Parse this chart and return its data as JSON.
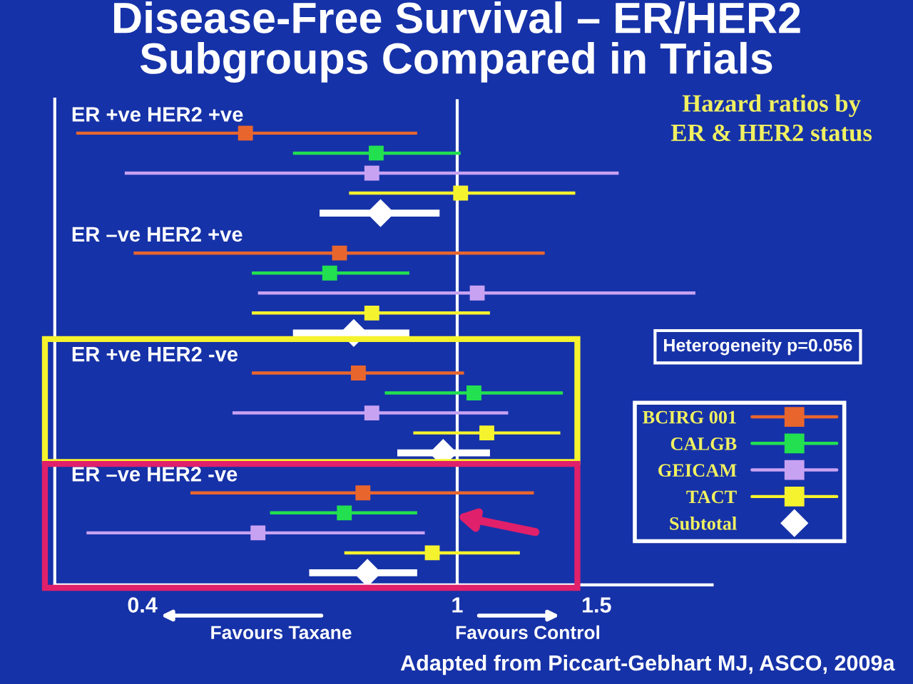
{
  "chart_data": {
    "type": "scatter",
    "orientation": "horizontal",
    "title": "Disease-Free Survival – ER/HER2\nSubgroups Compared in Trials",
    "subtitle": "Hazard ratios by\nER & HER2 status",
    "categories": [
      "ER +ve HER2 +ve",
      null,
      null,
      null,
      null,
      null,
      "ER –ve HER2 +ve",
      null,
      null,
      null,
      null,
      null,
      "ER +ve HER2 -ve",
      null,
      null,
      null,
      null,
      null,
      "ER –ve HER2 -ve",
      null,
      null,
      null,
      null,
      null
    ],
    "series": [
      {
        "name": "BCIRG 001",
        "color": "#e8662e",
        "marker": "square",
        "values": [
          null,
          0.54,
          null,
          null,
          null,
          null,
          null,
          0.71,
          null,
          null,
          null,
          null,
          null,
          0.75,
          null,
          null,
          null,
          null,
          null,
          0.76,
          null,
          null,
          null,
          null
        ],
        "errors": [
          null,
          [
            0.33,
            0.89
          ],
          null,
          null,
          null,
          null,
          null,
          [
            0.39,
            1.29
          ],
          null,
          null,
          null,
          null,
          null,
          [
            0.55,
            1.02
          ],
          null,
          null,
          null,
          null,
          null,
          [
            0.46,
            1.25
          ],
          null,
          null,
          null,
          null
        ]
      },
      {
        "name": "CALGB",
        "color": "#22e050",
        "marker": "square",
        "values": [
          null,
          null,
          0.79,
          null,
          null,
          null,
          null,
          null,
          0.69,
          null,
          null,
          null,
          null,
          null,
          1.05,
          null,
          null,
          null,
          null,
          null,
          0.72,
          null,
          null,
          null
        ],
        "errors": [
          null,
          null,
          [
            0.62,
            1.01
          ],
          null,
          null,
          null,
          null,
          null,
          [
            0.55,
            0.87
          ],
          null,
          null,
          null,
          null,
          null,
          [
            0.81,
            1.36
          ],
          null,
          null,
          null,
          null,
          null,
          [
            0.58,
            0.89
          ],
          null,
          null,
          null
        ]
      },
      {
        "name": "GEICAM",
        "color": "#c8a2f2",
        "marker": "square",
        "values": [
          null,
          null,
          null,
          0.78,
          null,
          null,
          null,
          null,
          null,
          1.06,
          null,
          null,
          null,
          null,
          null,
          0.78,
          null,
          null,
          null,
          null,
          null,
          0.56,
          null,
          null
        ],
        "errors": [
          null,
          null,
          null,
          [
            0.38,
            1.6
          ],
          null,
          null,
          null,
          null,
          null,
          [
            0.56,
            2.0
          ],
          null,
          null,
          null,
          null,
          null,
          [
            0.52,
            1.16
          ],
          null,
          null,
          null,
          null,
          null,
          [
            0.34,
            0.91
          ],
          null,
          null
        ]
      },
      {
        "name": "TACT",
        "color": "#f5f32e",
        "marker": "square",
        "values": [
          null,
          null,
          null,
          null,
          1.01,
          null,
          null,
          null,
          null,
          null,
          0.78,
          null,
          null,
          null,
          null,
          null,
          1.09,
          null,
          null,
          null,
          null,
          null,
          0.93,
          null
        ],
        "errors": [
          null,
          null,
          null,
          null,
          [
            0.73,
            1.41
          ],
          null,
          null,
          null,
          null,
          null,
          [
            0.55,
            1.1
          ],
          null,
          null,
          null,
          null,
          null,
          [
            0.88,
            1.35
          ],
          null,
          null,
          null,
          null,
          null,
          [
            0.72,
            1.2
          ],
          null
        ]
      },
      {
        "name": "Subtotal",
        "color": "#ffffff",
        "marker": "diamond",
        "values": [
          null,
          null,
          null,
          null,
          null,
          0.8,
          null,
          null,
          null,
          null,
          null,
          0.74,
          null,
          null,
          null,
          null,
          null,
          0.96,
          null,
          null,
          null,
          null,
          null,
          0.77
        ],
        "errors": [
          null,
          null,
          null,
          null,
          null,
          [
            0.67,
            0.95
          ],
          null,
          null,
          null,
          null,
          null,
          [
            0.62,
            0.87
          ],
          null,
          null,
          null,
          null,
          null,
          [
            0.84,
            1.1
          ],
          null,
          null,
          null,
          null,
          null,
          [
            0.65,
            0.89
          ]
        ]
      }
    ],
    "log": "x",
    "xlim": [
      0.31,
      2.1
    ],
    "xticks": [
      0.4,
      1,
      1.5
    ],
    "tick_labels": "x",
    "grid": false,
    "legend": "right",
    "ref_lines": [
      {
        "axis": "x",
        "value": 1,
        "color": "#ffffff"
      }
    ],
    "annotations": [
      "Heterogeneity p=0.056",
      "Favours Taxane",
      "Favours Control",
      "Adapted from Piccart-Gebhart MJ, ASCO, 2009a"
    ]
  }
}
